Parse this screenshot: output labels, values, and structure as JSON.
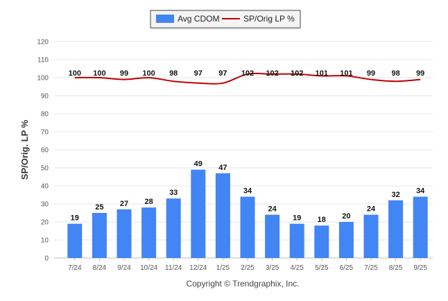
{
  "chart_data": {
    "type": "bar",
    "categories": [
      "7/24",
      "8/24",
      "9/24",
      "10/24",
      "11/24",
      "12/24",
      "1/25",
      "2/25",
      "3/25",
      "4/25",
      "5/25",
      "6/25",
      "7/25",
      "8/25",
      "9/25"
    ],
    "series": [
      {
        "name": "Avg CDOM",
        "type": "bar",
        "color": "#4285f4",
        "values": [
          19,
          25,
          27,
          28,
          33,
          49,
          47,
          34,
          24,
          19,
          18,
          20,
          24,
          32,
          34
        ]
      },
      {
        "name": "SP/Orig LP %",
        "type": "line",
        "color": "#c00000",
        "values": [
          100,
          100,
          99,
          100,
          98,
          97,
          97,
          102,
          102,
          102,
          101,
          101,
          99,
          98,
          99
        ]
      }
    ],
    "ylabel": "SP/Orig. LP %",
    "ylim": [
      0,
      120
    ],
    "yticks": [
      0,
      10,
      20,
      30,
      40,
      50,
      60,
      70,
      80,
      90,
      100,
      110,
      120
    ],
    "grid": true,
    "legend_position": "top-center"
  },
  "footer": {
    "copyright": "Copyright © Trendgraphix, Inc."
  }
}
